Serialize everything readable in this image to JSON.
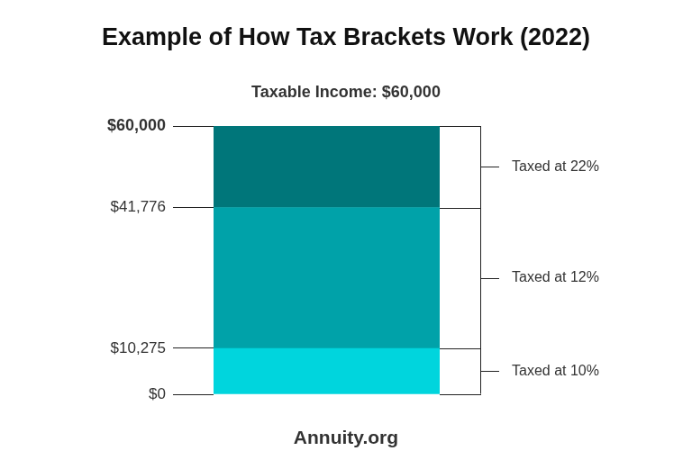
{
  "chart_data": {
    "type": "bar",
    "title": "Example of How Tax Brackets Work (2022)",
    "subtitle": "Taxable Income: $60,000",
    "source": "Annuity.org",
    "categories": [
      null
    ],
    "stacked": true,
    "grid": false,
    "tick_labels": "y",
    "ylim": [
      0,
      60000
    ],
    "yticks": [
      {
        "value": 0,
        "label": "$0"
      },
      {
        "value": 10275,
        "label": "$10,275"
      },
      {
        "value": 41776,
        "label": "$41,776"
      },
      {
        "value": 60000,
        "label": "$60,000"
      }
    ],
    "series": [
      {
        "name": "Taxed at 10%",
        "color": "#00d5dd",
        "values": [
          10275
        ]
      },
      {
        "name": "Taxed at 12%",
        "color": "#00a2a9",
        "values": [
          31501
        ]
      },
      {
        "name": "Taxed at 22%",
        "color": "#00767a",
        "values": [
          18224
        ]
      }
    ]
  }
}
